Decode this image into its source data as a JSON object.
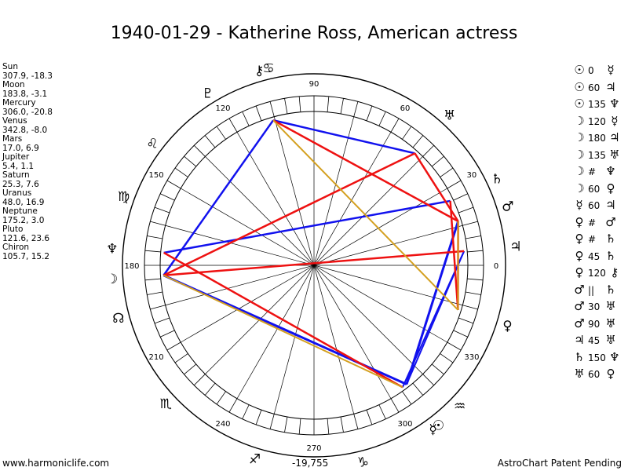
{
  "title": "1940-01-29 - Katherine Ross, American actress",
  "planets": [
    {
      "name": "Sun",
      "lon": "307.9, -18.3"
    },
    {
      "name": "Moon",
      "lon": "183.8, -3.1"
    },
    {
      "name": "Mercury",
      "lon": "306.0, -20.8"
    },
    {
      "name": "Venus",
      "lon": "342.8, -8.0"
    },
    {
      "name": "Mars",
      "lon": "17.0, 6.9"
    },
    {
      "name": "Jupiter",
      "lon": "5.4, 1.1"
    },
    {
      "name": "Saturn",
      "lon": "25.3, 7.6"
    },
    {
      "name": "Uranus",
      "lon": "48.0, 16.9"
    },
    {
      "name": "Neptune",
      "lon": "175.2, 3.0"
    },
    {
      "name": "Pluto",
      "lon": "121.6, 23.6"
    },
    {
      "name": "Chiron",
      "lon": "105.7, 15.2"
    }
  ],
  "aspects": [
    {
      "p1": "☉",
      "asp": "0",
      "p2": "☿"
    },
    {
      "p1": "☉",
      "asp": "60",
      "p2": "♃"
    },
    {
      "p1": "☉",
      "asp": "135",
      "p2": "♆"
    },
    {
      "p1": "☽",
      "asp": "120",
      "p2": "☿"
    },
    {
      "p1": "☽",
      "asp": "180",
      "p2": "♃"
    },
    {
      "p1": "☽",
      "asp": "135",
      "p2": "♅"
    },
    {
      "p1": "☽",
      "asp": "#",
      "p2": "♆"
    },
    {
      "p1": "☽",
      "asp": "60",
      "p2": "♀"
    },
    {
      "p1": "☿",
      "asp": "60",
      "p2": "♃"
    },
    {
      "p1": "♀",
      "asp": "#",
      "p2": "♂"
    },
    {
      "p1": "♀",
      "asp": "#",
      "p2": "♄"
    },
    {
      "p1": "♀",
      "asp": "45",
      "p2": "♄"
    },
    {
      "p1": "♀",
      "asp": "120",
      "p2": "⚷"
    },
    {
      "p1": "♂",
      "asp": "||",
      "p2": "♄"
    },
    {
      "p1": "♂",
      "asp": "30",
      "p2": "♅"
    },
    {
      "p1": "♂",
      "asp": "90",
      "p2": "♅"
    },
    {
      "p1": "♃",
      "asp": "45",
      "p2": "♅"
    },
    {
      "p1": "♄",
      "asp": "150",
      "p2": "♆"
    },
    {
      "p1": "♅",
      "asp": "60",
      "p2": "♀"
    }
  ],
  "ring_degree_labels": [
    "0",
    "30",
    "60",
    "90",
    "120",
    "150",
    "180",
    "210",
    "240",
    "270",
    "300",
    "330"
  ],
  "chart_points": [
    {
      "glyph": "☉",
      "lon": 307.9
    },
    {
      "glyph": "☽",
      "lon": 183.8
    },
    {
      "glyph": "☿",
      "lon": 306.0
    },
    {
      "glyph": "♀",
      "lon": 342.8
    },
    {
      "glyph": "♂",
      "lon": 17.0
    },
    {
      "glyph": "♃",
      "lon": 5.4
    },
    {
      "glyph": "♄",
      "lon": 25.3
    },
    {
      "glyph": "♅",
      "lon": 48.0
    },
    {
      "glyph": "♆",
      "lon": 175.2
    },
    {
      "glyph": "♇",
      "lon": 121.6
    },
    {
      "glyph": "⚷",
      "lon": 105.7
    },
    {
      "glyph": "☊",
      "lon": 195.0
    },
    {
      "glyph": "♋",
      "lon": 103.0
    },
    {
      "glyph": "♌",
      "lon": 143.0
    },
    {
      "glyph": "♍",
      "lon": 160.0
    },
    {
      "glyph": "♏",
      "lon": 223.0
    },
    {
      "glyph": "♐",
      "lon": 253.0
    },
    {
      "glyph": "♑",
      "lon": 284.0
    },
    {
      "glyph": "♒",
      "lon": 316.0
    }
  ],
  "footer": {
    "left": "www.harmoniclife.com",
    "center": "-19,755",
    "right": "AstroChart Patent Pending"
  },
  "colors": {
    "red": "#ee1111",
    "blue": "#1111ee",
    "gold": "#d4a020",
    "ring": "#000000"
  }
}
